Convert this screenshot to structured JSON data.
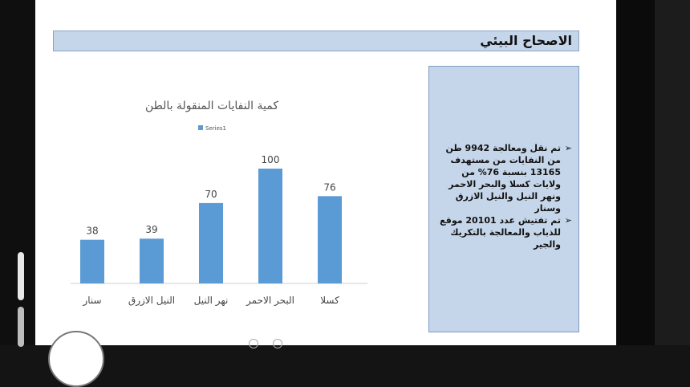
{
  "slide": {
    "title": "الاصحاح البيئي",
    "bullets": [
      "تم نقل ومعالجة 9942 طن من النفايات من مستهدف 13165 بنسبة 76% من ولايات كسلا والبحر الاحمر ونهر النيل والنيل الازرق وسنار",
      "تم تفتيش عدد 20101 موقع للذباب والمعالجة بالتكريك والجير"
    ],
    "bullet_icon": "chevron-right-icon"
  },
  "colors": {
    "bar": "#5b9bd5",
    "title_bar": "#c5d6ea",
    "info_box": "#c6d6ea"
  },
  "chart_data": {
    "type": "bar",
    "title": "كمية النفايات المنقولة بالطن",
    "legend": "Series1",
    "legend_position": "top",
    "categories": [
      "كسلا",
      "البحر الاحمر",
      "نهر النيل",
      "النيل الازرق",
      "سنار"
    ],
    "values": [
      76,
      100,
      70,
      39,
      38
    ],
    "data_labels": [
      "76",
      "100",
      "70",
      "39",
      "38"
    ],
    "ylim": [
      0,
      100
    ],
    "grid": false
  }
}
